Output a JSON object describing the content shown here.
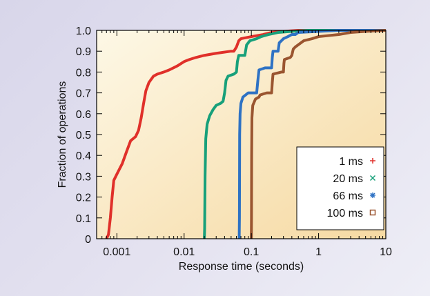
{
  "chart_data": {
    "type": "line",
    "xlabel": "Response time (seconds)",
    "ylabel": "Fraction of operations",
    "x_scale": "log",
    "xlim": [
      0.0005,
      10
    ],
    "ylim": [
      0,
      1.0
    ],
    "x_ticks": [
      {
        "value": 0.001,
        "label": "0.001"
      },
      {
        "value": 0.01,
        "label": "0.01"
      },
      {
        "value": 0.1,
        "label": "0.1"
      },
      {
        "value": 1,
        "label": "1"
      },
      {
        "value": 10,
        "label": "10"
      }
    ],
    "y_ticks": [
      {
        "value": 0,
        "label": "0"
      },
      {
        "value": 0.1,
        "label": "0.1"
      },
      {
        "value": 0.2,
        "label": "0.2"
      },
      {
        "value": 0.3,
        "label": "0.3"
      },
      {
        "value": 0.4,
        "label": "0.4"
      },
      {
        "value": 0.5,
        "label": "0.5"
      },
      {
        "value": 0.6,
        "label": "0.6"
      },
      {
        "value": 0.7,
        "label": "0.7"
      },
      {
        "value": 0.8,
        "label": "0.8"
      },
      {
        "value": 0.9,
        "label": "0.9"
      },
      {
        "value": 1.0,
        "label": "1.0"
      }
    ],
    "grid": false,
    "legend_position": "bottom-right",
    "background_gradient": [
      "#fdf8e6",
      "#f6d9a2"
    ],
    "series": [
      {
        "name": "1 ms",
        "color": "#e0302a",
        "marker": "+",
        "points": [
          [
            0.0007,
            0
          ],
          [
            0.00075,
            0.02
          ],
          [
            0.0008,
            0.1
          ],
          [
            0.00085,
            0.2
          ],
          [
            0.0009,
            0.28
          ],
          [
            0.001,
            0.31
          ],
          [
            0.0012,
            0.36
          ],
          [
            0.0014,
            0.42
          ],
          [
            0.0016,
            0.47
          ],
          [
            0.0019,
            0.49
          ],
          [
            0.0021,
            0.52
          ],
          [
            0.0023,
            0.58
          ],
          [
            0.0025,
            0.65
          ],
          [
            0.0027,
            0.71
          ],
          [
            0.003,
            0.75
          ],
          [
            0.0035,
            0.78
          ],
          [
            0.004,
            0.79
          ],
          [
            0.005,
            0.8
          ],
          [
            0.006,
            0.81
          ],
          [
            0.008,
            0.83
          ],
          [
            0.01,
            0.85
          ],
          [
            0.012,
            0.86
          ],
          [
            0.015,
            0.87
          ],
          [
            0.02,
            0.88
          ],
          [
            0.03,
            0.89
          ],
          [
            0.05,
            0.9
          ],
          [
            0.055,
            0.9
          ],
          [
            0.06,
            0.92
          ],
          [
            0.065,
            0.95
          ],
          [
            0.07,
            0.96
          ],
          [
            0.1,
            0.97
          ],
          [
            0.15,
            0.98
          ],
          [
            0.2,
            0.99
          ],
          [
            0.3,
            0.995
          ],
          [
            0.5,
            1.0
          ],
          [
            10,
            1.0
          ]
        ]
      },
      {
        "name": "20 ms",
        "color": "#17a07a",
        "marker": "×",
        "points": [
          [
            0.02,
            0
          ],
          [
            0.0202,
            0.05
          ],
          [
            0.0205,
            0.3
          ],
          [
            0.021,
            0.48
          ],
          [
            0.022,
            0.55
          ],
          [
            0.024,
            0.59
          ],
          [
            0.027,
            0.62
          ],
          [
            0.03,
            0.64
          ],
          [
            0.035,
            0.65
          ],
          [
            0.038,
            0.66
          ],
          [
            0.04,
            0.7
          ],
          [
            0.042,
            0.76
          ],
          [
            0.045,
            0.78
          ],
          [
            0.055,
            0.79
          ],
          [
            0.06,
            0.8
          ],
          [
            0.062,
            0.85
          ],
          [
            0.065,
            0.88
          ],
          [
            0.08,
            0.88
          ],
          [
            0.085,
            0.93
          ],
          [
            0.095,
            0.95
          ],
          [
            0.12,
            0.96
          ],
          [
            0.14,
            0.97
          ],
          [
            0.18,
            0.98
          ],
          [
            0.25,
            0.99
          ],
          [
            0.4,
            0.995
          ],
          [
            0.7,
            1.0
          ],
          [
            10,
            1.0
          ]
        ]
      },
      {
        "name": "66 ms",
        "color": "#2e72c4",
        "marker": "✱",
        "points": [
          [
            0.066,
            0
          ],
          [
            0.0665,
            0.1
          ],
          [
            0.067,
            0.5
          ],
          [
            0.068,
            0.6
          ],
          [
            0.07,
            0.65
          ],
          [
            0.075,
            0.68
          ],
          [
            0.09,
            0.7
          ],
          [
            0.12,
            0.7
          ],
          [
            0.125,
            0.76
          ],
          [
            0.13,
            0.81
          ],
          [
            0.16,
            0.82
          ],
          [
            0.2,
            0.82
          ],
          [
            0.205,
            0.87
          ],
          [
            0.21,
            0.9
          ],
          [
            0.25,
            0.9
          ],
          [
            0.26,
            0.94
          ],
          [
            0.28,
            0.95
          ],
          [
            0.3,
            0.96
          ],
          [
            0.35,
            0.97
          ],
          [
            0.4,
            0.98
          ],
          [
            0.45,
            0.98
          ],
          [
            0.5,
            0.99
          ],
          [
            1,
            0.995
          ],
          [
            2,
            1.0
          ],
          [
            10,
            1.0
          ]
        ]
      },
      {
        "name": "100 ms",
        "color": "#9a5530",
        "marker": "□",
        "points": [
          [
            0.1,
            0
          ],
          [
            0.1005,
            0.1
          ],
          [
            0.101,
            0.4
          ],
          [
            0.102,
            0.58
          ],
          [
            0.105,
            0.64
          ],
          [
            0.115,
            0.67
          ],
          [
            0.13,
            0.68
          ],
          [
            0.135,
            0.69
          ],
          [
            0.17,
            0.7
          ],
          [
            0.18,
            0.7
          ],
          [
            0.2,
            0.7
          ],
          [
            0.205,
            0.75
          ],
          [
            0.21,
            0.79
          ],
          [
            0.28,
            0.8
          ],
          [
            0.3,
            0.8
          ],
          [
            0.305,
            0.84
          ],
          [
            0.31,
            0.86
          ],
          [
            0.38,
            0.87
          ],
          [
            0.4,
            0.88
          ],
          [
            0.42,
            0.91
          ],
          [
            0.45,
            0.92
          ],
          [
            0.6,
            0.95
          ],
          [
            0.8,
            0.96
          ],
          [
            1,
            0.97
          ],
          [
            2,
            0.98
          ],
          [
            3,
            0.99
          ],
          [
            5,
            0.995
          ],
          [
            10,
            1.0
          ]
        ]
      }
    ]
  }
}
